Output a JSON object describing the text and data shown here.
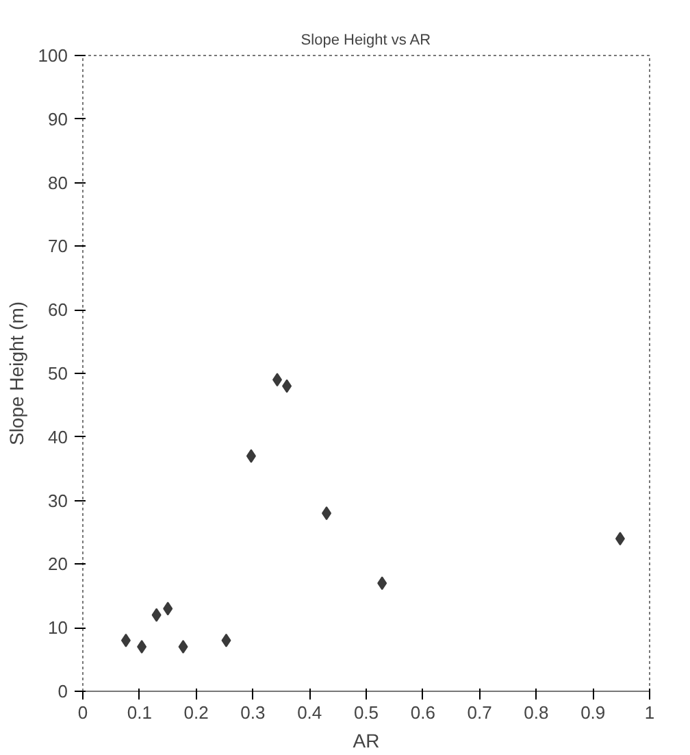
{
  "chart_data": {
    "type": "scatter",
    "title": "Slope Height vs AR",
    "xlabel": "AR",
    "ylabel": "Slope Height (m)",
    "x": [
      0.076,
      0.104,
      0.13,
      0.15,
      0.177,
      0.253,
      0.297,
      0.343,
      0.36,
      0.43,
      0.528,
      0.948
    ],
    "series": [
      {
        "color": "#3a3a3a",
        "values": [
          8,
          7,
          12,
          13,
          7,
          8,
          37,
          49,
          48,
          28,
          17,
          24
        ]
      }
    ],
    "xlim": [
      0,
      1
    ],
    "xticks": [
      0,
      0.1,
      0.2,
      0.3,
      0.4,
      0.5,
      0.6,
      0.7,
      0.8,
      0.9,
      1
    ],
    "ylim": [
      0,
      100
    ],
    "yticks": [
      0,
      10,
      20,
      30,
      40,
      50,
      60,
      70,
      80,
      90,
      100
    ],
    "grid": false,
    "marker": "diamond"
  }
}
